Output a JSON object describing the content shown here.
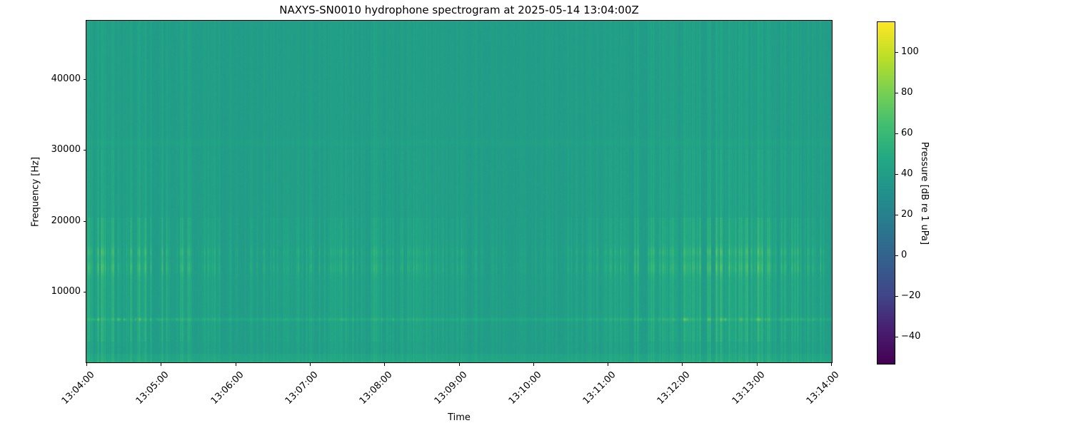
{
  "chart_data": {
    "type": "heatmap",
    "subtype": "spectrogram",
    "title": "NAXYS-SN0010 hydrophone spectrogram at 2025-05-14 13:04:00Z",
    "xlabel": "Time",
    "ylabel": "Frequency [Hz]",
    "x_ticks": [
      "13:04:00",
      "13:05:00",
      "13:06:00",
      "13:07:00",
      "13:08:00",
      "13:09:00",
      "13:10:00",
      "13:11:00",
      "13:12:00",
      "13:13:00",
      "13:14:00"
    ],
    "x_tick_rotation_deg": 45,
    "time_start": "13:04:00",
    "time_end": "13:14:00",
    "time_span_minutes": 10,
    "y_ticks": [
      {
        "value": 40000,
        "label": "40000"
      },
      {
        "value": 30000,
        "label": "30000"
      },
      {
        "value": 20000,
        "label": "20000"
      },
      {
        "value": 10000,
        "label": "10000"
      }
    ],
    "ylim_hz": [
      70,
      48224
    ],
    "grid": false,
    "legend": "none",
    "colormap": "viridis",
    "colorbar": {
      "label": "Pressure [dB re 1 uPa]",
      "position": "right",
      "vmin": -53.3,
      "vmax": 114.7,
      "ticks": [
        {
          "value": 100,
          "label": "100"
        },
        {
          "value": 80,
          "label": "80"
        },
        {
          "value": 60,
          "label": "60"
        },
        {
          "value": 40,
          "label": "40"
        },
        {
          "value": 20,
          "label": "20"
        },
        {
          "value": 0,
          "label": "0"
        },
        {
          "value": -20,
          "label": "−20"
        },
        {
          "value": -40,
          "label": "−40"
        }
      ]
    },
    "background_level_db": 39,
    "features": [
      {
        "kind": "band",
        "freq_range_hz": [
          0,
          1300
        ],
        "level_db": 47,
        "description": "elevated low-frequency noise floor along bottom edge"
      },
      {
        "kind": "tonal",
        "freq_hz": 6100,
        "peak_db": 85,
        "description": "bright intermittent dashed tonal line near 6 kHz"
      },
      {
        "kind": "band",
        "freq_range_hz": [
          12000,
          16500
        ],
        "level_db": 68,
        "description": "dense cluster of bright vertical transient streaks between ~12 and ~16.5 kHz with sub-bands near 13.4 and 15.6 kHz"
      },
      {
        "kind": "tonal",
        "freq_hz": 31000,
        "peak_db": 42,
        "description": "faint continuous narrow band near 31 kHz"
      },
      {
        "kind": "transients",
        "freq_range_hz": [
          0,
          48224
        ],
        "level_db": 50,
        "description": "repetitive broadband vertical streaks (impulsive clicks) recurring throughout the 10-minute record, strongest between 3 and 20 kHz"
      }
    ],
    "colors": {
      "background_teal": "#219c89",
      "low_band_green": "#2db47d",
      "bright_streak": "#9ed64f",
      "colorbar_top": "#fde725",
      "colorbar_bottom": "#440154",
      "axes_text": "#000000"
    }
  }
}
